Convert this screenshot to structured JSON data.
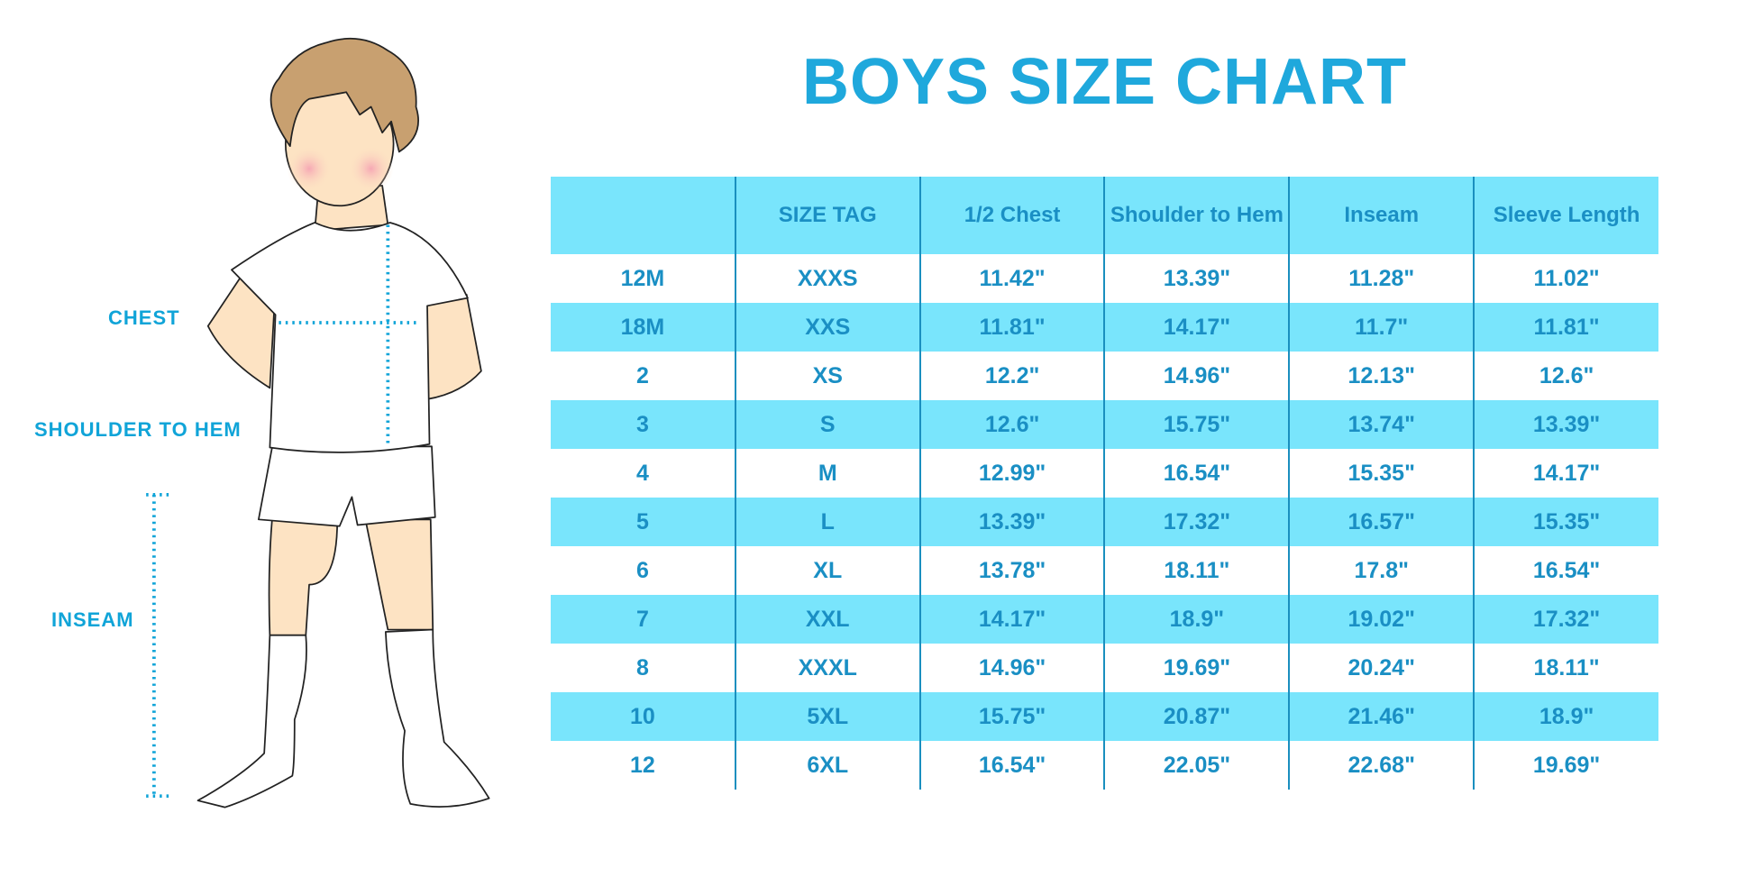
{
  "title": "BOYS SIZE CHART",
  "figure_labels": {
    "chest": "CHEST",
    "shoulder_to_hem": "SHOULDER TO HEM",
    "inseam": "INSEAM"
  },
  "colors": {
    "accent": "#1fa8dc",
    "header_bg": "#79e5fc",
    "text": "#1a8fc4"
  },
  "table": {
    "headers": [
      "",
      "SIZE TAG",
      "1/2 Chest",
      "Shoulder to Hem",
      "Inseam",
      "Sleeve Length"
    ],
    "rows": [
      [
        "12M",
        "XXXS",
        "11.42\"",
        "13.39\"",
        "11.28\"",
        "11.02\""
      ],
      [
        "18M",
        "XXS",
        "11.81\"",
        "14.17\"",
        "11.7\"",
        "11.81\""
      ],
      [
        "2",
        "XS",
        "12.2\"",
        "14.96\"",
        "12.13\"",
        "12.6\""
      ],
      [
        "3",
        "S",
        "12.6\"",
        "15.75\"",
        "13.74\"",
        "13.39\""
      ],
      [
        "4",
        "M",
        "12.99\"",
        "16.54\"",
        "15.35\"",
        "14.17\""
      ],
      [
        "5",
        "L",
        "13.39\"",
        "17.32\"",
        "16.57\"",
        "15.35\""
      ],
      [
        "6",
        "XL",
        "13.78\"",
        "18.11\"",
        "17.8\"",
        "16.54\""
      ],
      [
        "7",
        "XXL",
        "14.17\"",
        "18.9\"",
        "19.02\"",
        "17.32\""
      ],
      [
        "8",
        "XXXL",
        "14.96\"",
        "19.69\"",
        "20.24\"",
        "18.11\""
      ],
      [
        "10",
        "5XL",
        "15.75\"",
        "20.87\"",
        "21.46\"",
        "18.9\""
      ],
      [
        "12",
        "6XL",
        "16.54\"",
        "22.05\"",
        "22.68\"",
        "19.69\""
      ]
    ]
  }
}
